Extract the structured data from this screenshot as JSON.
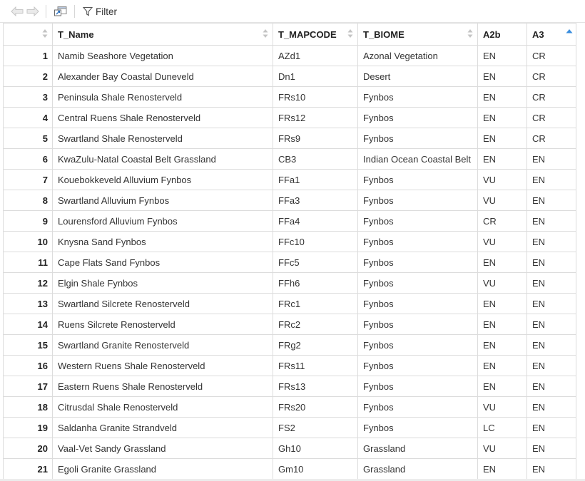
{
  "toolbar": {
    "filter_label": "Filter",
    "icons": [
      "back-arrow-icon",
      "forward-arrow-icon",
      "popout-icon",
      "filter-icon"
    ]
  },
  "table": {
    "columns": [
      "",
      "T_Name",
      "T_MAPCODE",
      "T_BIOME",
      "A2b",
      "A3"
    ],
    "sorted_column": "A3",
    "sort_direction": "ascending",
    "rows": [
      {
        "n": "1",
        "name": "Namib Seashore Vegetation",
        "mapcode": "AZd1",
        "biome": "Azonal Vegetation",
        "a2b": "EN",
        "a3": "CR"
      },
      {
        "n": "2",
        "name": "Alexander Bay Coastal Duneveld",
        "mapcode": "Dn1",
        "biome": "Desert",
        "a2b": "EN",
        "a3": "CR"
      },
      {
        "n": "3",
        "name": "Peninsula Shale Renosterveld",
        "mapcode": "FRs10",
        "biome": "Fynbos",
        "a2b": "EN",
        "a3": "CR"
      },
      {
        "n": "4",
        "name": "Central Ruens Shale Renosterveld",
        "mapcode": "FRs12",
        "biome": "Fynbos",
        "a2b": "EN",
        "a3": "CR"
      },
      {
        "n": "5",
        "name": "Swartland Shale Renosterveld",
        "mapcode": "FRs9",
        "biome": "Fynbos",
        "a2b": "EN",
        "a3": "CR"
      },
      {
        "n": "6",
        "name": "KwaZulu-Natal Coastal Belt Grassland",
        "mapcode": "CB3",
        "biome": "Indian Ocean Coastal Belt",
        "a2b": "EN",
        "a3": "EN"
      },
      {
        "n": "7",
        "name": "Kouebokkeveld Alluvium Fynbos",
        "mapcode": "FFa1",
        "biome": "Fynbos",
        "a2b": "VU",
        "a3": "EN"
      },
      {
        "n": "8",
        "name": "Swartland Alluvium Fynbos",
        "mapcode": "FFa3",
        "biome": "Fynbos",
        "a2b": "VU",
        "a3": "EN"
      },
      {
        "n": "9",
        "name": "Lourensford Alluvium Fynbos",
        "mapcode": "FFa4",
        "biome": "Fynbos",
        "a2b": "CR",
        "a3": "EN"
      },
      {
        "n": "10",
        "name": "Knysna Sand Fynbos",
        "mapcode": "FFc10",
        "biome": "Fynbos",
        "a2b": "VU",
        "a3": "EN"
      },
      {
        "n": "11",
        "name": "Cape Flats Sand Fynbos",
        "mapcode": "FFc5",
        "biome": "Fynbos",
        "a2b": "EN",
        "a3": "EN"
      },
      {
        "n": "12",
        "name": "Elgin Shale Fynbos",
        "mapcode": "FFh6",
        "biome": "Fynbos",
        "a2b": "VU",
        "a3": "EN"
      },
      {
        "n": "13",
        "name": "Swartland Silcrete Renosterveld",
        "mapcode": "FRc1",
        "biome": "Fynbos",
        "a2b": "EN",
        "a3": "EN"
      },
      {
        "n": "14",
        "name": "Ruens Silcrete Renosterveld",
        "mapcode": "FRc2",
        "biome": "Fynbos",
        "a2b": "EN",
        "a3": "EN"
      },
      {
        "n": "15",
        "name": "Swartland Granite Renosterveld",
        "mapcode": "FRg2",
        "biome": "Fynbos",
        "a2b": "EN",
        "a3": "EN"
      },
      {
        "n": "16",
        "name": "Western Ruens Shale Renosterveld",
        "mapcode": "FRs11",
        "biome": "Fynbos",
        "a2b": "EN",
        "a3": "EN"
      },
      {
        "n": "17",
        "name": "Eastern Ruens Shale Renosterveld",
        "mapcode": "FRs13",
        "biome": "Fynbos",
        "a2b": "EN",
        "a3": "EN"
      },
      {
        "n": "18",
        "name": "Citrusdal Shale Renosterveld",
        "mapcode": "FRs20",
        "biome": "Fynbos",
        "a2b": "VU",
        "a3": "EN"
      },
      {
        "n": "19",
        "name": "Saldanha Granite Strandveld",
        "mapcode": "FS2",
        "biome": "Fynbos",
        "a2b": "LC",
        "a3": "EN"
      },
      {
        "n": "20",
        "name": "Vaal-Vet Sandy Grassland",
        "mapcode": "Gh10",
        "biome": "Grassland",
        "a2b": "VU",
        "a3": "EN"
      },
      {
        "n": "21",
        "name": "Egoli Granite Grassland",
        "mapcode": "Gm10",
        "biome": "Grassland",
        "a2b": "EN",
        "a3": "EN"
      }
    ]
  },
  "colors": {
    "sort_active": "#3a8ede",
    "sort_inactive": "#c4c4c4",
    "border": "#dcdcdc"
  }
}
